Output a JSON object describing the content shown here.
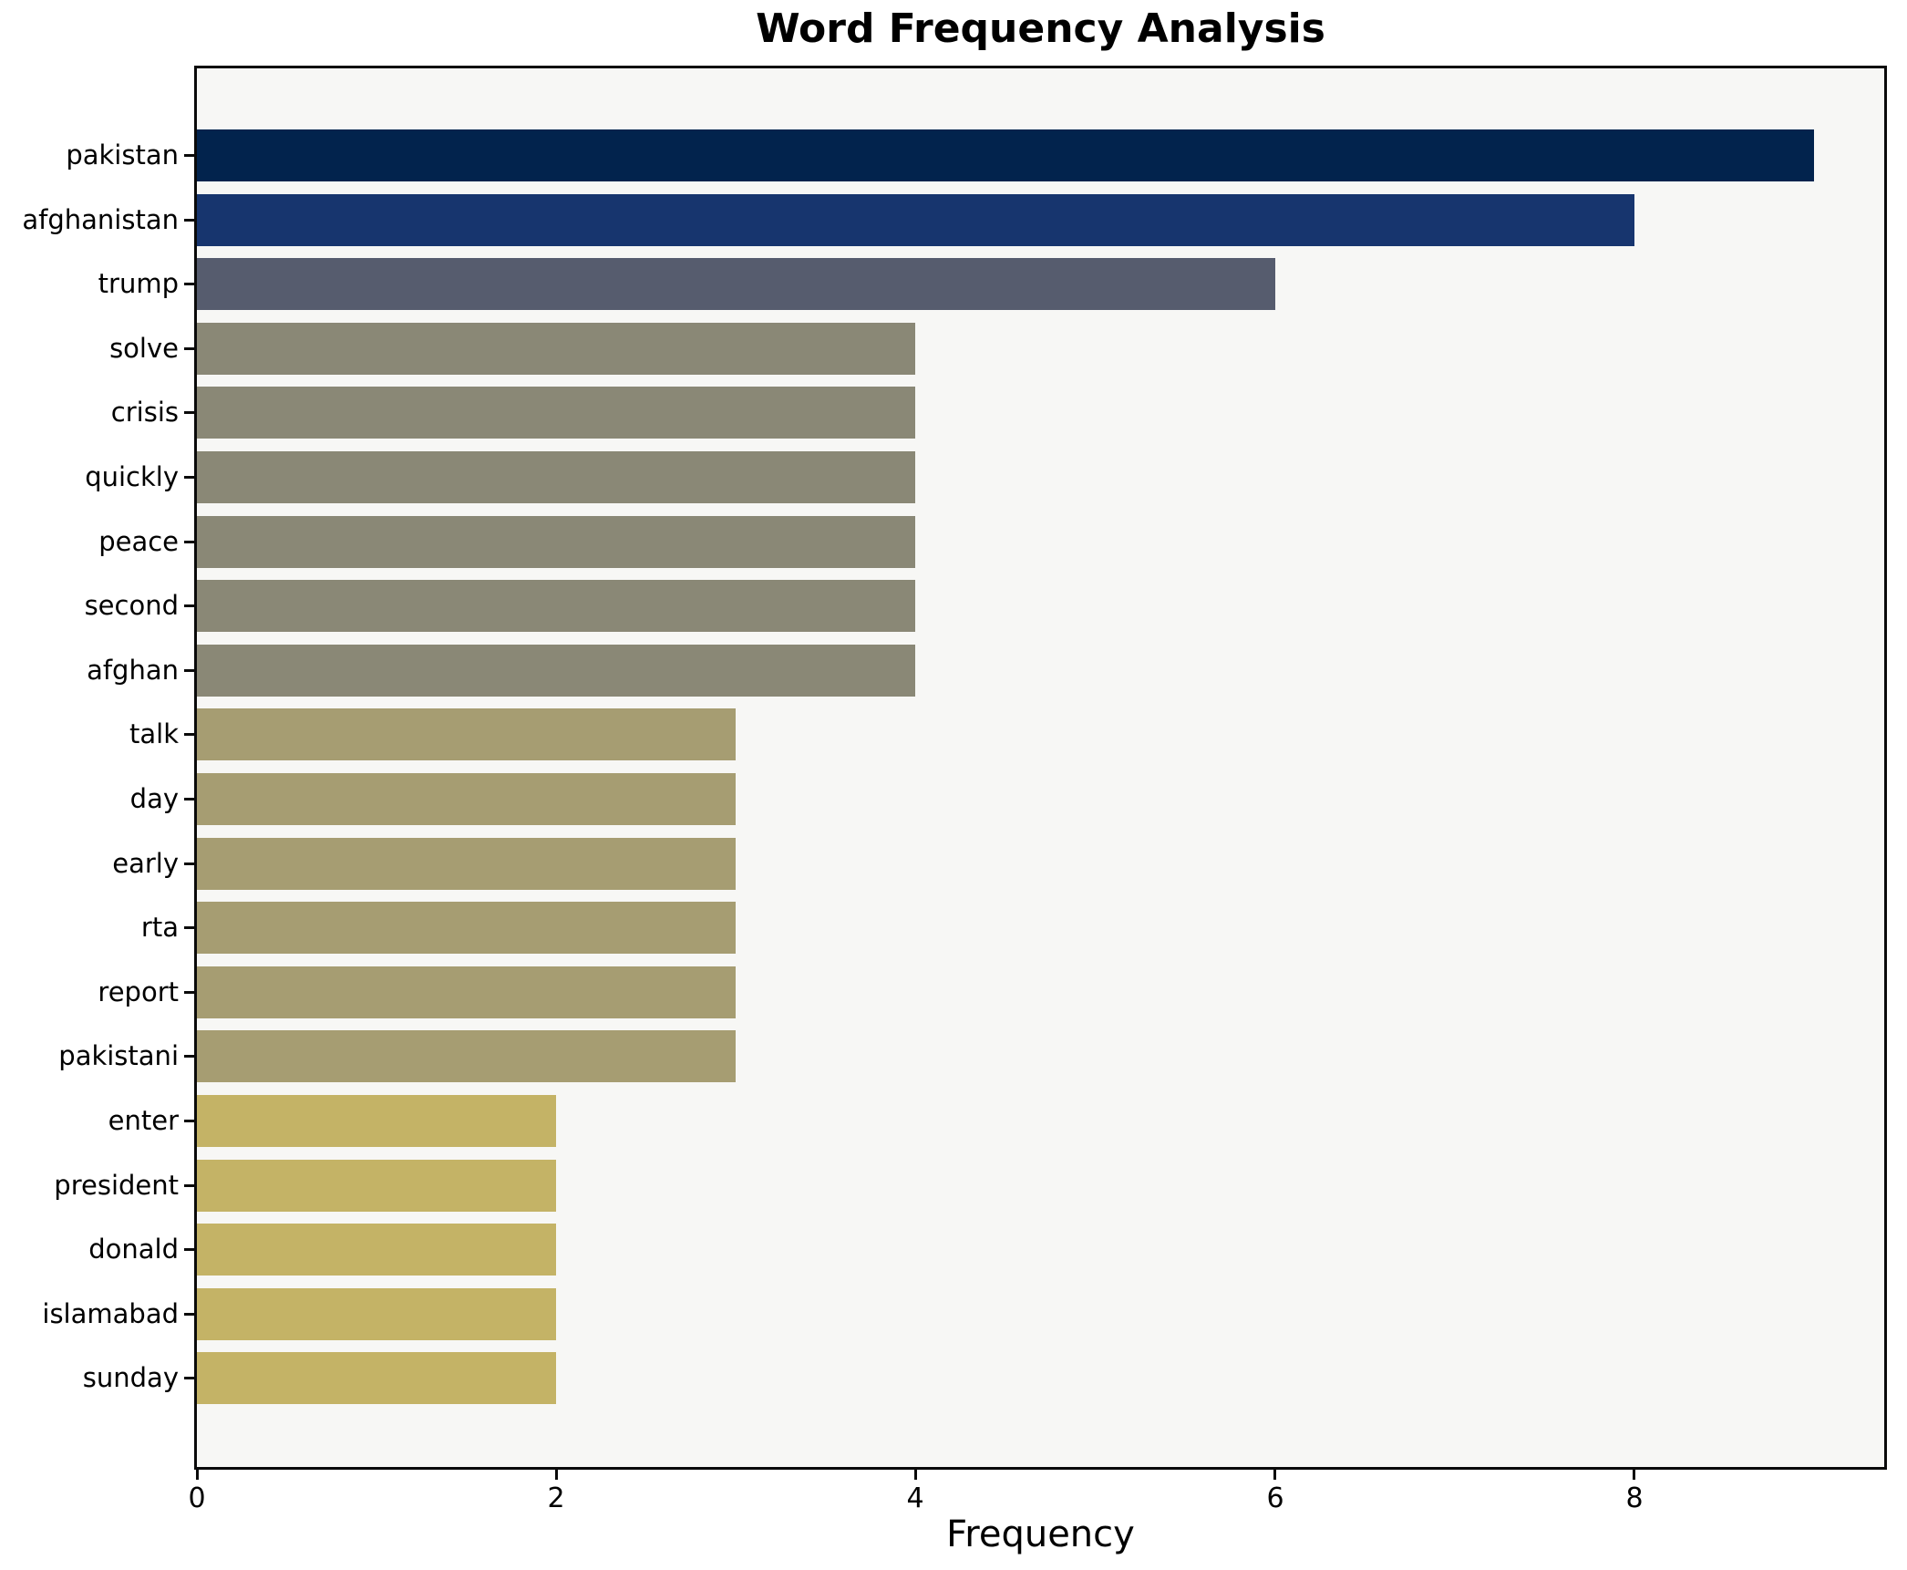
{
  "chart_data": {
    "type": "bar",
    "orientation": "horizontal",
    "title": "Word Frequency Analysis",
    "xlabel": "Frequency",
    "ylabel": "",
    "categories": [
      "pakistan",
      "afghanistan",
      "trump",
      "solve",
      "crisis",
      "quickly",
      "peace",
      "second",
      "afghan",
      "talk",
      "day",
      "early",
      "rta",
      "report",
      "pakistani",
      "enter",
      "president",
      "donald",
      "islamabad",
      "sunday"
    ],
    "values": [
      9,
      8,
      6,
      4,
      4,
      4,
      4,
      4,
      4,
      3,
      3,
      3,
      3,
      3,
      3,
      2,
      2,
      2,
      2,
      2
    ],
    "bar_colors": [
      "#02234d",
      "#17356e",
      "#565c6e",
      "#8a8876",
      "#8a8876",
      "#8a8876",
      "#8a8876",
      "#8a8876",
      "#8a8876",
      "#a69d72",
      "#a69d72",
      "#a69d72",
      "#a69d72",
      "#a69d72",
      "#a69d72",
      "#c4b366",
      "#c4b366",
      "#c4b366",
      "#c4b366",
      "#c4b366"
    ],
    "x_tick_labels": [
      "0",
      "2",
      "4",
      "6",
      "8"
    ],
    "x_tick_values": [
      0,
      2,
      4,
      6,
      8
    ],
    "xlim": [
      0,
      9.39
    ],
    "grid": false,
    "legend": false,
    "colors": {
      "plot_background": "#f7f7f5",
      "figure_background": "#ffffff",
      "spine": "#0a0a0a",
      "text": "#000000"
    }
  }
}
